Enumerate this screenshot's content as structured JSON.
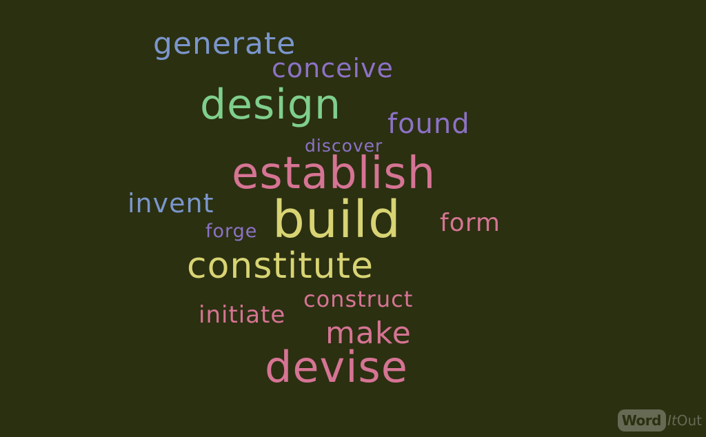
{
  "cloud": {
    "background": "#2b3011",
    "words": [
      {
        "key": "generate",
        "text": "generate",
        "color": "#7b96cc"
      },
      {
        "key": "conceive",
        "text": "conceive",
        "color": "#8c72c6"
      },
      {
        "key": "design",
        "text": "design",
        "color": "#7fcf8c"
      },
      {
        "key": "found",
        "text": "found",
        "color": "#8c72c6"
      },
      {
        "key": "discover",
        "text": "discover",
        "color": "#8c72c6"
      },
      {
        "key": "establish",
        "text": "establish",
        "color": "#d67494"
      },
      {
        "key": "invent",
        "text": "invent",
        "color": "#7b96cc"
      },
      {
        "key": "build",
        "text": "build",
        "color": "#d8d474"
      },
      {
        "key": "form",
        "text": "form",
        "color": "#d67494"
      },
      {
        "key": "forge",
        "text": "forge",
        "color": "#8c72c6"
      },
      {
        "key": "constitute",
        "text": "constitute",
        "color": "#d8d474"
      },
      {
        "key": "construct",
        "text": "construct",
        "color": "#d67494"
      },
      {
        "key": "initiate",
        "text": "initiate",
        "color": "#d67494"
      },
      {
        "key": "make",
        "text": "make",
        "color": "#d67494"
      },
      {
        "key": "devise",
        "text": "devise",
        "color": "#d67494"
      }
    ]
  },
  "logo": {
    "word": "Word",
    "it": "It",
    "out": "Out"
  }
}
